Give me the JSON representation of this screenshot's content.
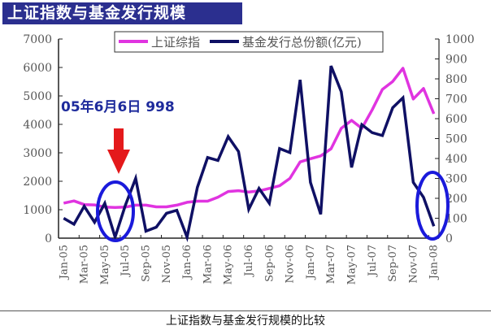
{
  "header": {
    "title": "上证指数与基金发行规模"
  },
  "caption": "上证指数与基金发行规模的比较",
  "annotation": {
    "text": "05年6月6日  998",
    "color": "#1e2b9c",
    "arrow_color": "#e4191b",
    "circle_color": "#1a1adb"
  },
  "colors": {
    "index_line": "#e034e0",
    "fund_line": "#0f1064",
    "title_bg": "#2b2f8f"
  },
  "chart_data": {
    "type": "line",
    "title": "上证指数与基金发行规模",
    "xlabel": "",
    "ylabel_left": "上证综指",
    "ylabel_right": "基金发行总份额(亿元)",
    "ylim_left": [
      0,
      7000
    ],
    "ylim_right": [
      0,
      1000
    ],
    "yticks_left": [
      0,
      1000,
      2000,
      3000,
      4000,
      5000,
      6000,
      7000
    ],
    "yticks_right": [
      0,
      100,
      200,
      300,
      400,
      500,
      600,
      700,
      800,
      900,
      1000
    ],
    "grid": false,
    "legend_position": "top-center",
    "x": [
      "Jan-05",
      "Feb-05",
      "Mar-05",
      "Apr-05",
      "May-05",
      "Jun-05",
      "Jul-05",
      "Aug-05",
      "Sep-05",
      "Oct-05",
      "Nov-05",
      "Dec-05",
      "Jan-06",
      "Feb-06",
      "Mar-06",
      "Apr-06",
      "May-06",
      "Jun-06",
      "Jul-06",
      "Aug-06",
      "Sep-06",
      "Oct-06",
      "Nov-06",
      "Dec-06",
      "Jan-07",
      "Feb-07",
      "Mar-07",
      "Apr-07",
      "May-07",
      "Jun-07",
      "Jul-07",
      "Aug-07",
      "Sep-07",
      "Oct-07",
      "Nov-07",
      "Dec-07",
      "Jan-08"
    ],
    "xtick_labels": [
      "Jan-05",
      "Mar-05",
      "May-05",
      "Jul-05",
      "Sep-05",
      "Nov-05",
      "Jan-06",
      "Mar-06",
      "May-06",
      "Jul-06",
      "Sep-06",
      "Nov-06",
      "Jan-07",
      "Mar-07",
      "May-07",
      "Jul-07",
      "Sep-07",
      "Nov-07",
      "Jan-08"
    ],
    "series": [
      {
        "name": "上证综指",
        "axis": "left",
        "values": [
          1230,
          1310,
          1180,
          1170,
          1090,
          1080,
          1090,
          1160,
          1160,
          1100,
          1100,
          1160,
          1260,
          1300,
          1300,
          1440,
          1640,
          1670,
          1620,
          1660,
          1750,
          1840,
          2100,
          2680,
          2790,
          2890,
          3140,
          3860,
          4140,
          3860,
          4510,
          5230,
          5510,
          5970,
          4890,
          5260,
          4370
        ]
      },
      {
        "name": "基金发行总份额(亿元)",
        "axis": "right",
        "values": [
          100,
          70,
          160,
          80,
          175,
          5,
          165,
          300,
          35,
          55,
          125,
          140,
          5,
          255,
          405,
          390,
          510,
          435,
          145,
          250,
          175,
          450,
          430,
          795,
          280,
          120,
          865,
          735,
          355,
          570,
          530,
          515,
          655,
          705,
          280,
          205,
          60
        ]
      }
    ],
    "annotations": [
      {
        "text": "05年6月6日  998",
        "target": "Jun-05"
      }
    ]
  }
}
